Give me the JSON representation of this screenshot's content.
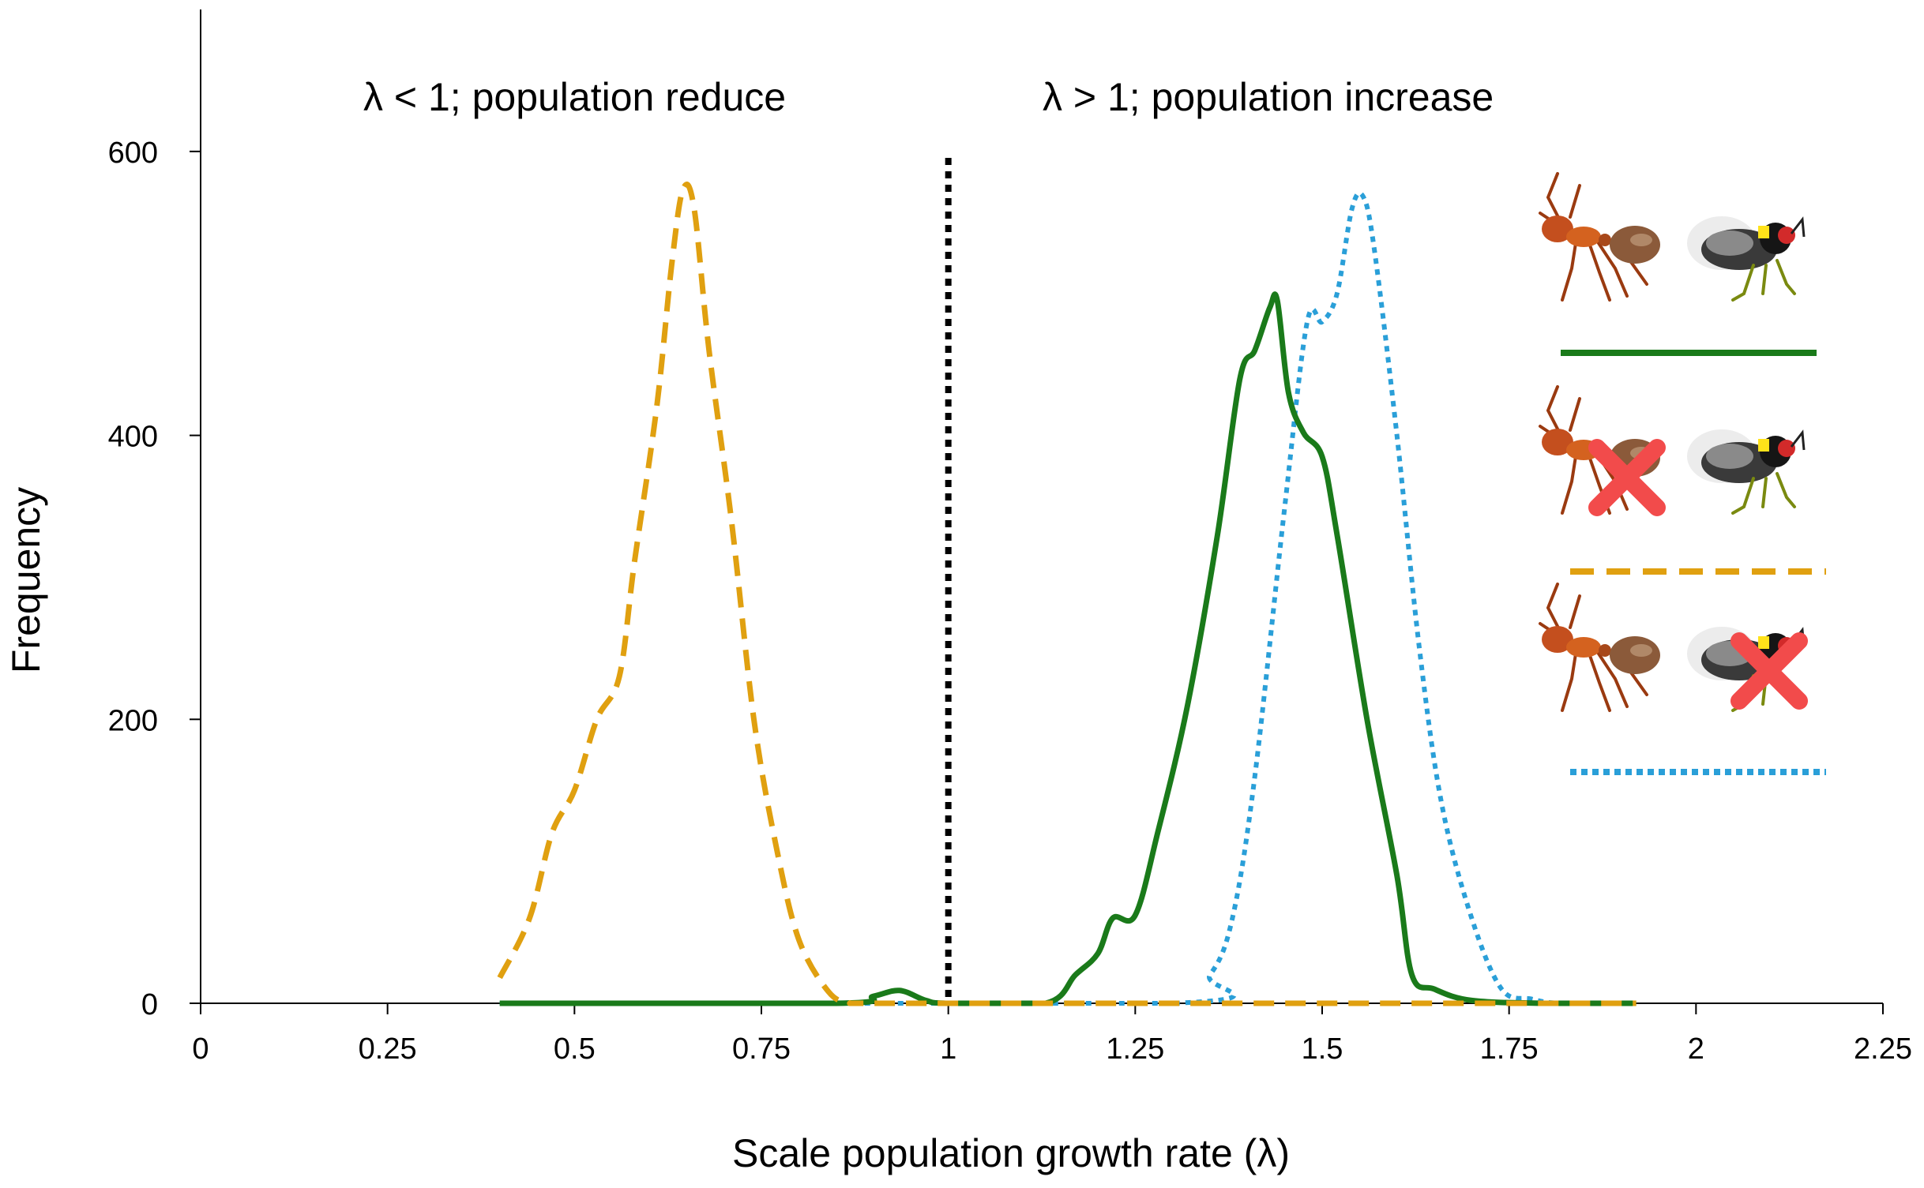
{
  "chart_data": {
    "type": "line",
    "xlabel": "Scale population growth rate (λ)",
    "ylabel": "Frequency",
    "xlim": [
      0,
      2.25
    ],
    "ylim": [
      0,
      700
    ],
    "xticks": [
      0,
      0.25,
      0.5,
      0.75,
      1,
      1.25,
      1.5,
      1.75,
      2,
      2.25
    ],
    "xtick_labels": [
      "0",
      "0.25",
      "0.5",
      "0.75",
      "1",
      "1.25",
      "1.5",
      "1.75",
      "2",
      "2.25"
    ],
    "yticks": [
      0,
      200,
      400,
      600
    ],
    "ytick_labels": [
      "0",
      "200",
      "400",
      "600"
    ],
    "threshold": {
      "x": 1,
      "style": "dotted",
      "color": "#000000"
    },
    "annotations": [
      {
        "text": "λ  < 1; population reduce",
        "x": 0.22,
        "y": 635
      },
      {
        "text": "λ  > 1; population increase",
        "x": 1.13,
        "y": 635
      }
    ],
    "series": [
      {
        "name": "both ants and parasitoid flies present",
        "style": "solid",
        "color": "#1a7a1a",
        "x": [
          0.4,
          0.85,
          0.9,
          0.935,
          0.97,
          1.0,
          1.13,
          1.17,
          1.2,
          1.22,
          1.25,
          1.28,
          1.32,
          1.36,
          1.39,
          1.41,
          1.43,
          1.44,
          1.455,
          1.475,
          1.5,
          1.52,
          1.56,
          1.6,
          1.62,
          1.65,
          1.7,
          1.8,
          1.92
        ],
        "values": [
          0,
          0,
          5,
          9,
          2,
          0,
          0,
          20,
          35,
          60,
          62,
          120,
          210,
          330,
          440,
          460,
          490,
          495,
          430,
          402,
          385,
          330,
          200,
          90,
          20,
          10,
          2,
          0,
          0
        ]
      },
      {
        "name": "ants removed",
        "style": "dashed",
        "color": "#e0a010",
        "x": [
          0.4,
          0.44,
          0.47,
          0.5,
          0.53,
          0.56,
          0.58,
          0.61,
          0.63,
          0.645,
          0.66,
          0.68,
          0.71,
          0.74,
          0.77,
          0.8,
          0.84,
          0.87,
          0.9,
          1.2,
          1.6,
          1.92
        ],
        "values": [
          18,
          60,
          120,
          150,
          200,
          230,
          310,
          420,
          520,
          573,
          560,
          460,
          340,
          200,
          110,
          45,
          8,
          0,
          0,
          0,
          0,
          0
        ]
      },
      {
        "name": "parasitoid flies removed",
        "style": "dotted",
        "color": "#2a9fd8",
        "x": [
          0.4,
          1.3,
          1.35,
          1.38,
          1.41,
          1.45,
          1.48,
          1.5,
          1.52,
          1.54,
          1.555,
          1.57,
          1.6,
          1.63,
          1.66,
          1.7,
          1.74,
          1.78,
          1.82,
          1.92
        ],
        "values": [
          0,
          0,
          20,
          60,
          160,
          350,
          480,
          480,
          500,
          560,
          568,
          530,
          400,
          250,
          140,
          60,
          10,
          3,
          0,
          0
        ]
      }
    ],
    "legend": {
      "placement": "right",
      "entries": [
        {
          "label": "ant present, fly present",
          "style": "solid",
          "color": "#1a7a1a",
          "ant_removed": false,
          "fly_removed": false
        },
        {
          "label": "ant removed, fly present",
          "style": "dashed",
          "color": "#e0a010",
          "ant_removed": true,
          "fly_removed": false
        },
        {
          "label": "ant present, fly removed",
          "style": "dotted",
          "color": "#2a9fd8",
          "ant_removed": false,
          "fly_removed": true
        }
      ]
    }
  }
}
